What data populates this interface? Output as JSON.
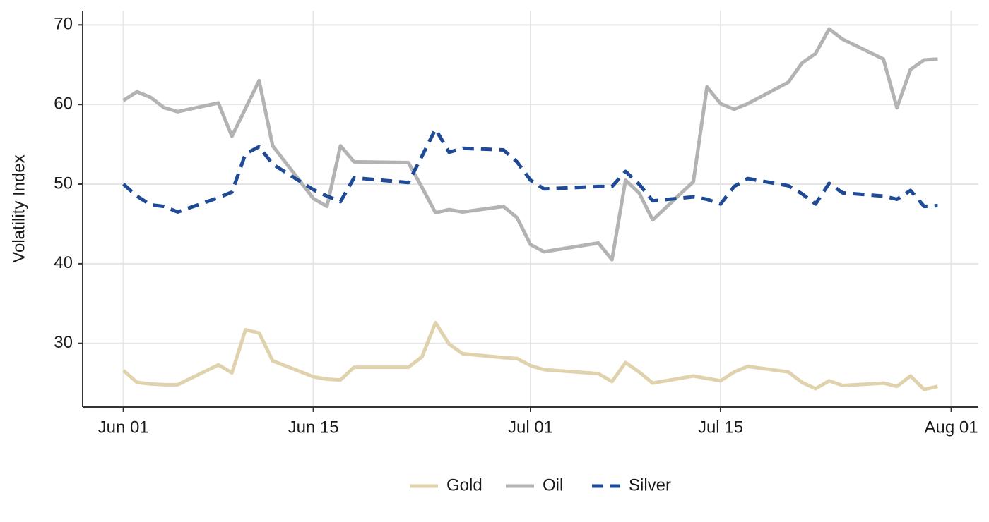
{
  "chart_data": {
    "type": "line",
    "ylabel": "Volatility Index",
    "x": [
      "06-01",
      "06-02",
      "06-03",
      "06-04",
      "06-05",
      "06-08",
      "06-09",
      "06-10",
      "06-11",
      "06-12",
      "06-15",
      "06-16",
      "06-17",
      "06-18",
      "06-22",
      "06-23",
      "06-24",
      "06-25",
      "06-26",
      "06-29",
      "06-30",
      "07-01",
      "07-02",
      "07-06",
      "07-07",
      "07-08",
      "07-09",
      "07-10",
      "07-13",
      "07-14",
      "07-15",
      "07-16",
      "07-17",
      "07-20",
      "07-21",
      "07-22",
      "07-23",
      "07-24",
      "07-27",
      "07-28",
      "07-29",
      "07-30",
      "07-31"
    ],
    "series": [
      {
        "name": "Gold",
        "color": "#dfd2ad",
        "dash": false,
        "values": [
          26.6,
          25.1,
          24.9,
          24.8,
          24.8,
          27.3,
          26.3,
          31.7,
          31.3,
          27.8,
          25.8,
          25.5,
          25.4,
          27.0,
          27.0,
          28.3,
          32.6,
          29.9,
          28.7,
          28.2,
          28.1,
          27.2,
          26.7,
          26.2,
          25.2,
          27.6,
          26.4,
          25.0,
          25.9,
          25.6,
          25.3,
          26.4,
          27.1,
          26.4,
          25.1,
          24.3,
          25.3,
          24.7,
          25.0,
          24.6,
          25.9,
          24.2,
          24.6
        ]
      },
      {
        "name": "Oil",
        "color": "#b3b3b3",
        "dash": false,
        "values": [
          60.5,
          61.6,
          60.9,
          59.6,
          59.1,
          60.2,
          56.0,
          59.5,
          63.0,
          54.8,
          48.2,
          47.2,
          54.8,
          52.8,
          52.7,
          49.6,
          46.4,
          46.8,
          46.5,
          47.2,
          45.8,
          42.4,
          41.5,
          42.6,
          40.5,
          50.5,
          48.9,
          45.5,
          50.3,
          62.2,
          60.1,
          59.4,
          60.1,
          62.8,
          65.2,
          66.4,
          69.5,
          68.2,
          65.7,
          59.6,
          64.4,
          65.6,
          65.7
        ]
      },
      {
        "name": "Silver",
        "color": "#1f4a96",
        "dash": true,
        "values": [
          50.0,
          48.5,
          47.4,
          47.2,
          46.5,
          48.3,
          49.0,
          53.8,
          54.7,
          52.5,
          49.3,
          48.5,
          47.8,
          50.8,
          50.2,
          53.5,
          56.9,
          54.0,
          54.5,
          54.3,
          52.8,
          50.5,
          49.4,
          49.7,
          49.7,
          51.6,
          50.0,
          47.9,
          48.4,
          48.1,
          47.5,
          49.7,
          50.7,
          49.8,
          48.8,
          47.5,
          50.1,
          48.9,
          48.5,
          48.1,
          49.2,
          47.2,
          47.3
        ]
      }
    ],
    "xlim": [
      "05-29",
      "08-03"
    ],
    "xticks": [
      {
        "value": "06-01",
        "label": "Jun 01"
      },
      {
        "value": "06-15",
        "label": "Jun 15"
      },
      {
        "value": "07-01",
        "label": "Jul 01"
      },
      {
        "value": "07-15",
        "label": "Jul 15"
      },
      {
        "value": "08-01",
        "label": "Aug 01"
      }
    ],
    "ylim": [
      22,
      71.8
    ],
    "yticks": [
      30,
      40,
      50,
      60,
      70
    ],
    "grid": true,
    "legend": "bottom"
  }
}
